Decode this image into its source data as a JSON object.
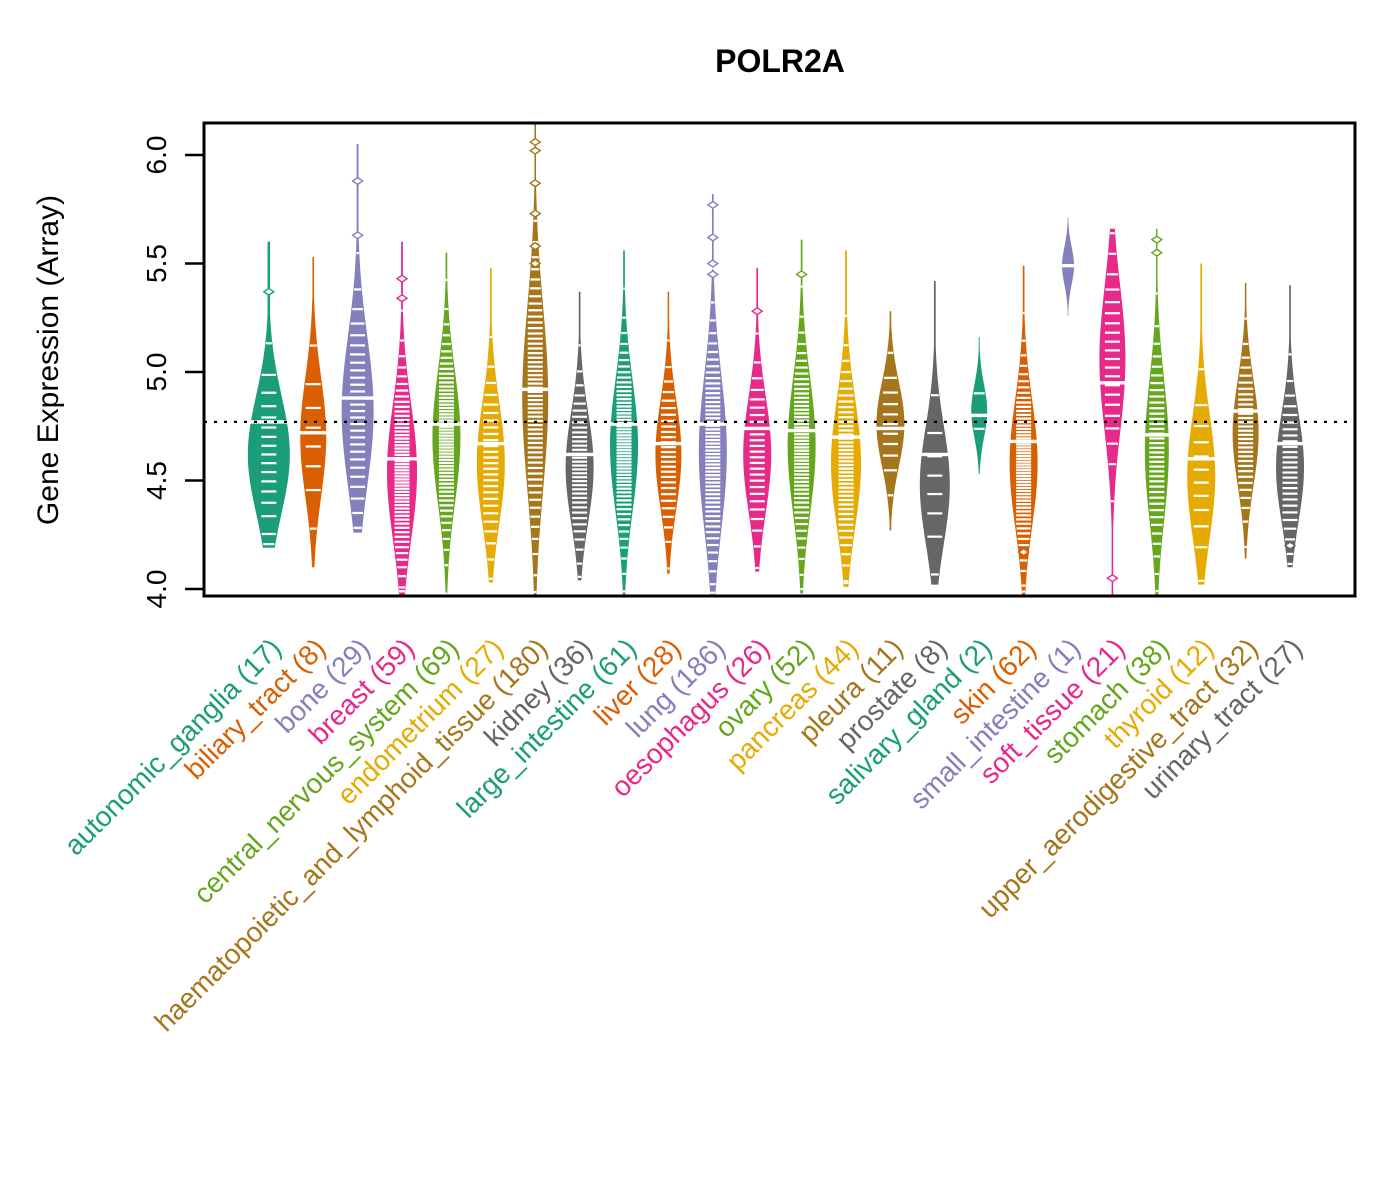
{
  "title": "POLR2A",
  "y_axis": {
    "label": "Gene Expression (Array)",
    "tick_labels": [
      "4.0",
      "4.5",
      "5.0",
      "5.5",
      "6.0"
    ],
    "ticks": [
      4.0,
      4.5,
      5.0,
      5.5,
      6.0
    ]
  },
  "reference_line_value": 4.77,
  "palette": [
    "#1B9E77",
    "#D95F02",
    "#8480BC",
    "#E7298A",
    "#66A61E",
    "#E6AB02",
    "#A6761D",
    "#666666"
  ],
  "chart_data": {
    "type": "violin",
    "title": "POLR2A",
    "xlabel": "",
    "ylabel": "Gene Expression (Array)",
    "ylim": [
      3.97,
      6.15
    ],
    "yticks": [
      4.0,
      4.5,
      5.0,
      5.5,
      6.0
    ],
    "grid": false,
    "reference_line_y": 4.77,
    "groups": [
      {
        "label": "autonomic_ganglia",
        "n": 17,
        "display": "autonomic_ganglia (17)",
        "color": "#1B9E77",
        "min": 4.19,
        "max": 5.6,
        "median": 4.77,
        "mode": 4.62,
        "halfwidth": 21,
        "outliers": [
          5.37
        ]
      },
      {
        "label": "biliary_tract",
        "n": 8,
        "display": "biliary_tract (8)",
        "color": "#D95F02",
        "min": 4.1,
        "max": 5.53,
        "median": 4.72,
        "mode": 4.7,
        "halfwidth": 13,
        "outliers": []
      },
      {
        "label": "bone",
        "n": 29,
        "display": "bone (29)",
        "color": "#8480BC",
        "min": 4.26,
        "max": 6.05,
        "median": 4.88,
        "mode": 4.82,
        "halfwidth": 16,
        "outliers": [
          5.63,
          5.88
        ]
      },
      {
        "label": "breast",
        "n": 59,
        "display": "breast (59)",
        "color": "#E7298A",
        "min": 3.97,
        "max": 5.6,
        "median": 4.6,
        "mode": 4.54,
        "halfwidth": 15,
        "outliers": [
          5.34,
          5.43
        ]
      },
      {
        "label": "central_nervous_system",
        "n": 69,
        "display": "central_nervous_system (69)",
        "color": "#66A61E",
        "min": 3.96,
        "max": 5.55,
        "median": 4.76,
        "mode": 4.7,
        "halfwidth": 14,
        "outliers": []
      },
      {
        "label": "endometrium",
        "n": 27,
        "display": "endometrium (27)",
        "color": "#E6AB02",
        "min": 4.03,
        "max": 5.48,
        "median": 4.67,
        "mode": 4.58,
        "halfwidth": 14,
        "outliers": []
      },
      {
        "label": "haematopoietic_and_lymphoid_tissue",
        "n": 180,
        "display": "haematopoietic_and_lymphoid_tissue (180)",
        "color": "#A6761D",
        "min": 3.96,
        "max": 6.16,
        "median": 4.92,
        "mode": 4.88,
        "halfwidth": 13,
        "outliers": [
          5.5,
          5.58,
          5.73,
          5.87,
          6.02,
          6.06
        ]
      },
      {
        "label": "kidney",
        "n": 36,
        "display": "kidney (36)",
        "color": "#666666",
        "min": 4.04,
        "max": 5.37,
        "median": 4.62,
        "mode": 4.56,
        "halfwidth": 14,
        "outliers": []
      },
      {
        "label": "large_intestine",
        "n": 61,
        "display": "large_intestine (61)",
        "color": "#1B9E77",
        "min": 3.97,
        "max": 5.56,
        "median": 4.76,
        "mode": 4.66,
        "halfwidth": 14,
        "outliers": []
      },
      {
        "label": "liver",
        "n": 28,
        "display": "liver (28)",
        "color": "#D95F02",
        "min": 4.07,
        "max": 5.37,
        "median": 4.67,
        "mode": 4.62,
        "halfwidth": 13,
        "outliers": []
      },
      {
        "label": "lung",
        "n": 186,
        "display": "lung (186)",
        "color": "#8480BC",
        "min": 3.96,
        "max": 5.82,
        "median": 4.76,
        "mode": 4.63,
        "halfwidth": 14,
        "outliers": [
          5.45,
          5.5,
          5.62,
          5.77
        ]
      },
      {
        "label": "oesophagus",
        "n": 26,
        "display": "oesophagus (26)",
        "color": "#E7298A",
        "min": 4.08,
        "max": 5.48,
        "median": 4.74,
        "mode": 4.62,
        "halfwidth": 14,
        "outliers": [
          5.28
        ]
      },
      {
        "label": "ovary",
        "n": 52,
        "display": "ovary (52)",
        "color": "#66A61E",
        "min": 3.98,
        "max": 5.61,
        "median": 4.73,
        "mode": 4.66,
        "halfwidth": 14,
        "outliers": [
          5.45
        ]
      },
      {
        "label": "pancreas",
        "n": 44,
        "display": "pancreas (44)",
        "color": "#E6AB02",
        "min": 4.01,
        "max": 5.56,
        "median": 4.7,
        "mode": 4.58,
        "halfwidth": 15,
        "outliers": []
      },
      {
        "label": "pleura",
        "n": 11,
        "display": "pleura (11)",
        "color": "#A6761D",
        "min": 4.27,
        "max": 5.28,
        "median": 4.74,
        "mode": 4.76,
        "halfwidth": 14,
        "outliers": []
      },
      {
        "label": "prostate",
        "n": 8,
        "display": "prostate (8)",
        "color": "#666666",
        "min": 4.02,
        "max": 5.42,
        "median": 4.62,
        "mode": 4.48,
        "halfwidth": 15,
        "outliers": []
      },
      {
        "label": "salivary_gland",
        "n": 2,
        "display": "salivary_gland (2)",
        "color": "#1B9E77",
        "min": 4.53,
        "max": 5.16,
        "median": 4.8,
        "mode": 4.82,
        "halfwidth": 8,
        "outliers": []
      },
      {
        "label": "skin",
        "n": 62,
        "display": "skin (62)",
        "color": "#D95F02",
        "min": 3.97,
        "max": 5.49,
        "median": 4.68,
        "mode": 4.58,
        "halfwidth": 14,
        "outliers": [
          4.17
        ]
      },
      {
        "label": "small_intestine",
        "n": 1,
        "display": "small_intestine (1)",
        "color": "#8480BC",
        "min": 5.26,
        "max": 5.71,
        "median": 5.49,
        "mode": 5.49,
        "halfwidth": 6,
        "outliers": []
      },
      {
        "label": "soft_tissue",
        "n": 21,
        "display": "soft_tissue (21)",
        "color": "#E7298A",
        "min": 3.94,
        "max": 5.66,
        "median": 4.95,
        "mode": 5.06,
        "halfwidth": 13,
        "outliers": [
          4.05
        ]
      },
      {
        "label": "stomach",
        "n": 38,
        "display": "stomach (38)",
        "color": "#66A61E",
        "min": 3.97,
        "max": 5.66,
        "median": 4.71,
        "mode": 4.64,
        "halfwidth": 12,
        "outliers": [
          5.55,
          5.61
        ]
      },
      {
        "label": "thyroid",
        "n": 12,
        "display": "thyroid (12)",
        "color": "#E6AB02",
        "min": 4.02,
        "max": 5.5,
        "median": 4.6,
        "mode": 4.52,
        "halfwidth": 14,
        "outliers": []
      },
      {
        "label": "upper_aerodigestive_tract",
        "n": 32,
        "display": "upper_aerodigestive_tract (32)",
        "color": "#A6761D",
        "min": 4.14,
        "max": 5.41,
        "median": 4.82,
        "mode": 4.72,
        "halfwidth": 13,
        "outliers": []
      },
      {
        "label": "urinary_tract",
        "n": 27,
        "display": "urinary_tract (27)",
        "color": "#666666",
        "min": 4.1,
        "max": 5.4,
        "median": 4.67,
        "mode": 4.56,
        "halfwidth": 14,
        "outliers": [
          4.2
        ]
      }
    ]
  }
}
